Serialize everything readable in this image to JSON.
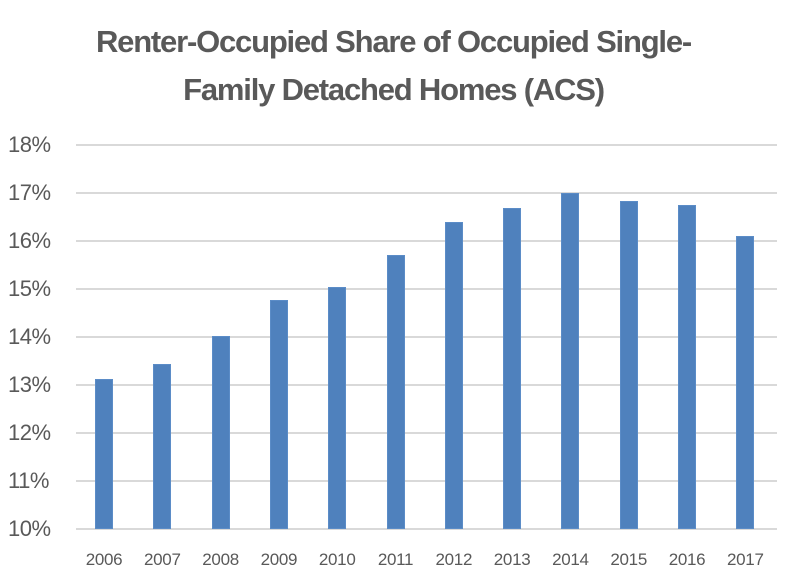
{
  "chart_data": {
    "type": "bar",
    "title": "Renter-Occupied Share of Occupied Single-Family Detached Homes (ACS)",
    "title_lines": [
      "Renter-Occupied Share of Occupied Single-",
      "Family Detached Homes (ACS)"
    ],
    "xlabel": "",
    "ylabel": "",
    "categories": [
      "2006",
      "2007",
      "2008",
      "2009",
      "2010",
      "2011",
      "2012",
      "2013",
      "2014",
      "2015",
      "2016",
      "2017"
    ],
    "values": [
      13.13,
      13.44,
      14.02,
      14.77,
      15.04,
      15.71,
      16.4,
      16.69,
      17.0,
      16.83,
      16.75,
      16.1
    ],
    "unit": "%",
    "ylim": [
      10,
      18
    ],
    "yticks": [
      "18%",
      "17%",
      "16%",
      "15%",
      "14%",
      "13%",
      "12%",
      "11%",
      "10%"
    ],
    "grid": true,
    "legend": null,
    "colors": {
      "bar": "#4f81bd",
      "grid": "#d9d9d9",
      "text": "#595959"
    }
  }
}
